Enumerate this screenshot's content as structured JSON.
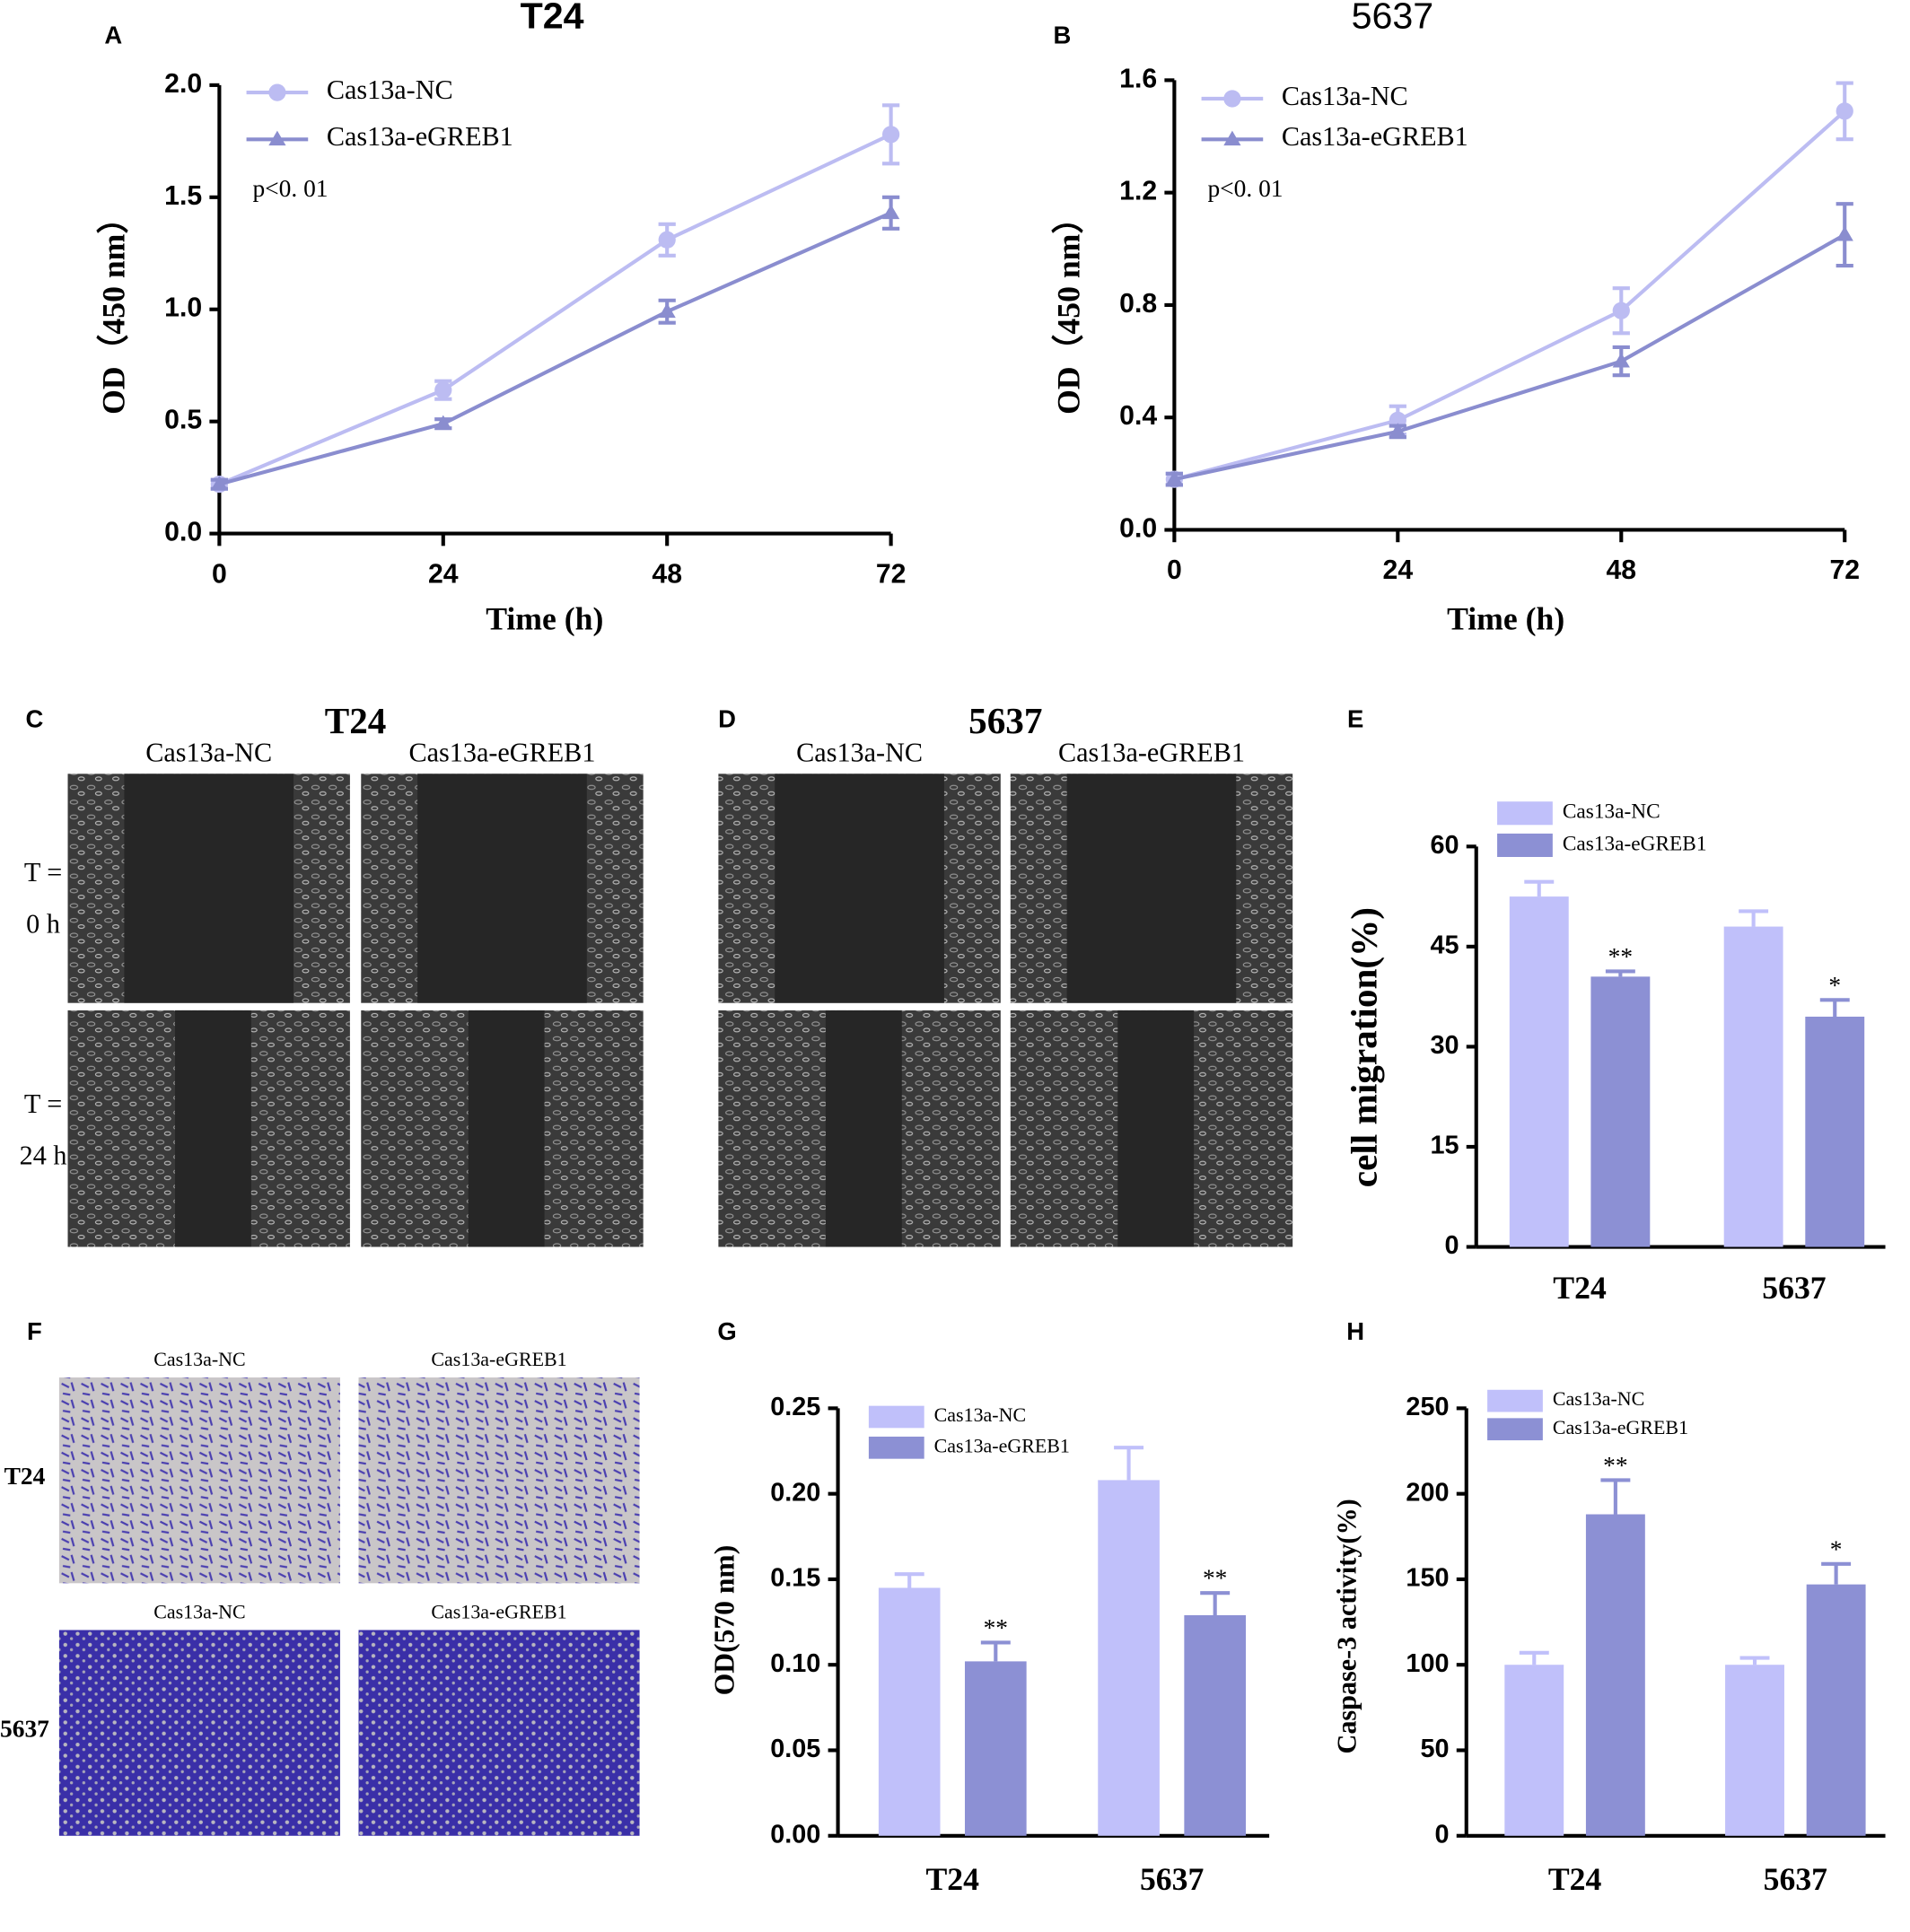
{
  "chart_data": [
    {
      "panel": "A",
      "type": "line",
      "title": "T24",
      "xlabel": "Time (h)",
      "ylabel": "OD（450 nm）",
      "annotation": "p<0. 01",
      "x": [
        0,
        24,
        48,
        72
      ],
      "xlim": [
        0,
        72
      ],
      "xticks": [
        0,
        24,
        48,
        72
      ],
      "ylim": [
        0,
        2
      ],
      "yticks": [
        {
          "value": 0,
          "label": "0.0"
        },
        {
          "value": 0.5,
          "label": "0.5"
        },
        {
          "value": 1,
          "label": "1.0"
        },
        {
          "value": 1.5,
          "label": "1.5"
        },
        {
          "value": 2,
          "label": "2.0"
        }
      ],
      "legend": "upper left",
      "series": [
        {
          "name": "Cas13a-NC",
          "color": "#bcbcf2",
          "marker": "circle",
          "values": [
            0.22,
            0.64,
            1.31,
            1.78
          ],
          "errors": [
            0.02,
            0.04,
            0.07,
            0.13
          ]
        },
        {
          "name": "Cas13a-eGREB1",
          "color": "#8a8dcf",
          "marker": "triangle",
          "values": [
            0.22,
            0.49,
            0.99,
            1.43
          ],
          "errors": [
            0.02,
            0.02,
            0.05,
            0.07
          ]
        }
      ]
    },
    {
      "panel": "B",
      "type": "line",
      "title": "5637",
      "xlabel": "Time (h)",
      "ylabel": "OD（450 nm）",
      "annotation": "p<0. 01",
      "x": [
        0,
        24,
        48,
        72
      ],
      "xlim": [
        0,
        72
      ],
      "xticks": [
        0,
        24,
        48,
        72
      ],
      "ylim": [
        0,
        1.6
      ],
      "yticks": [
        {
          "value": 0,
          "label": "0.0"
        },
        0.4,
        0.8,
        1.2,
        1.6
      ],
      "legend": "upper left",
      "series": [
        {
          "name": "Cas13a-NC",
          "color": "#bcbcf2",
          "marker": "circle",
          "values": [
            0.18,
            0.39,
            0.78,
            1.49
          ],
          "errors": [
            0.02,
            0.05,
            0.08,
            0.1
          ]
        },
        {
          "name": "Cas13a-eGREB1",
          "color": "#8a8dcf",
          "marker": "triangle",
          "values": [
            0.18,
            0.35,
            0.6,
            1.05
          ],
          "errors": [
            0.02,
            0.02,
            0.05,
            0.11
          ]
        }
      ]
    },
    {
      "panel": "E",
      "type": "bar",
      "ylabel": "cell migration(%)",
      "categories": [
        "T24",
        "5637"
      ],
      "ylim": [
        0,
        60
      ],
      "yticks": [
        0,
        15,
        30,
        45,
        60
      ],
      "legend": "upper left",
      "series": [
        {
          "name": "Cas13a-NC",
          "color": "#c0c0fa",
          "values": [
            52.5,
            48
          ],
          "errors": [
            2.2,
            2.3
          ]
        },
        {
          "name": "Cas13a-eGREB1",
          "color": "#8c90d4",
          "values": [
            40.5,
            34.5
          ],
          "errors": [
            0.8,
            2.5
          ],
          "significance": [
            "**",
            "*"
          ]
        }
      ]
    },
    {
      "panel": "G",
      "type": "bar",
      "ylabel": "OD(570 nm)",
      "categories": [
        "T24",
        "5637"
      ],
      "ylim": [
        0,
        0.25
      ],
      "yticks": [
        {
          "value": 0,
          "label": "0.00"
        },
        {
          "value": 0.05,
          "label": "0.05"
        },
        {
          "value": 0.1,
          "label": "0.10"
        },
        {
          "value": 0.15,
          "label": "0.15"
        },
        {
          "value": 0.2,
          "label": "0.20"
        },
        {
          "value": 0.25,
          "label": "0.25"
        }
      ],
      "legend": "upper left",
      "series": [
        {
          "name": "Cas13a-NC",
          "color": "#c0c0fa",
          "values": [
            0.145,
            0.208
          ],
          "errors": [
            0.008,
            0.019
          ]
        },
        {
          "name": "Cas13a-eGREB1",
          "color": "#8c90d4",
          "values": [
            0.102,
            0.129
          ],
          "errors": [
            0.011,
            0.013
          ],
          "significance": [
            "**",
            "**"
          ]
        }
      ]
    },
    {
      "panel": "H",
      "type": "bar",
      "ylabel": "Caspase-3 activity(%)",
      "categories": [
        "T24",
        "5637"
      ],
      "ylim": [
        0,
        250
      ],
      "yticks": [
        0,
        50,
        100,
        150,
        200,
        250
      ],
      "legend": "upper left",
      "series": [
        {
          "name": "Cas13a-NC",
          "color": "#c0c0fa",
          "values": [
            100,
            100
          ],
          "errors": [
            7,
            4
          ]
        },
        {
          "name": "Cas13a-eGREB1",
          "color": "#8c90d4",
          "values": [
            188,
            147
          ],
          "errors": [
            20,
            12
          ],
          "significance": [
            "**",
            "*"
          ]
        }
      ]
    }
  ],
  "micrographs": [
    {
      "panel": "C",
      "title": "T24",
      "columns": [
        "Cas13a-NC",
        "Cas13a-eGREB1"
      ],
      "rows": [
        [
          "T =",
          "0 h"
        ],
        [
          "T =",
          "24 h"
        ]
      ]
    },
    {
      "panel": "D",
      "title": "5637",
      "columns": [
        "Cas13a-NC",
        "Cas13a-eGREB1"
      ]
    },
    {
      "panel": "F",
      "labels": [
        [
          "Cas13a-NC",
          "Cas13a-eGREB1"
        ],
        [
          "Cas13a-NC",
          "Cas13a-eGREB1"
        ]
      ],
      "rows": [
        "T24",
        "5637"
      ]
    }
  ]
}
